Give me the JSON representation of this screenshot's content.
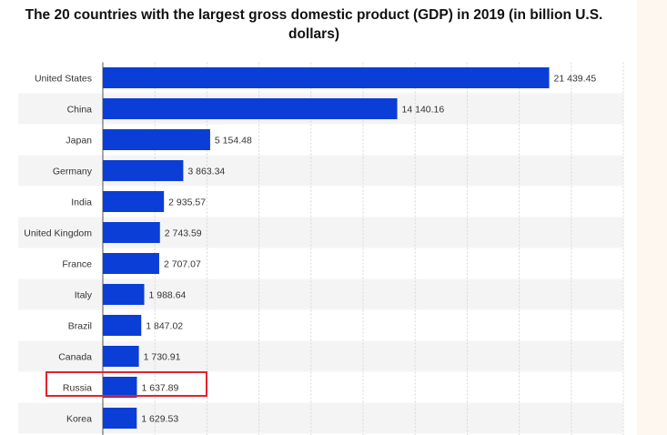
{
  "chart_data": {
    "type": "bar",
    "orientation": "horizontal",
    "title": "The 20 countries with the largest gross domestic product (GDP) in 2019 (in billion U.S. dollars)",
    "categories": [
      "United States",
      "China",
      "Japan",
      "Germany",
      "India",
      "United Kingdom",
      "France",
      "Italy",
      "Brazil",
      "Canada",
      "Russia",
      "Korea"
    ],
    "values": [
      21439.45,
      14140.16,
      5154.48,
      3863.34,
      2935.57,
      2743.59,
      2707.07,
      1988.64,
      1847.02,
      1730.91,
      1637.89,
      1629.53
    ],
    "value_labels": [
      "21 439.45",
      "14 140.16",
      "5 154.48",
      "3 863.34",
      "2 935.57",
      "2 743.59",
      "2 707.07",
      "1 988.64",
      "1 847.02",
      "1 730.91",
      "1 637.89",
      "1 629.53"
    ],
    "xlim": [
      0,
      25000
    ],
    "grid": true,
    "bar_color": "#0a3ed6",
    "highlighted_category": "Russia",
    "highlight_color": "#e2232d"
  }
}
